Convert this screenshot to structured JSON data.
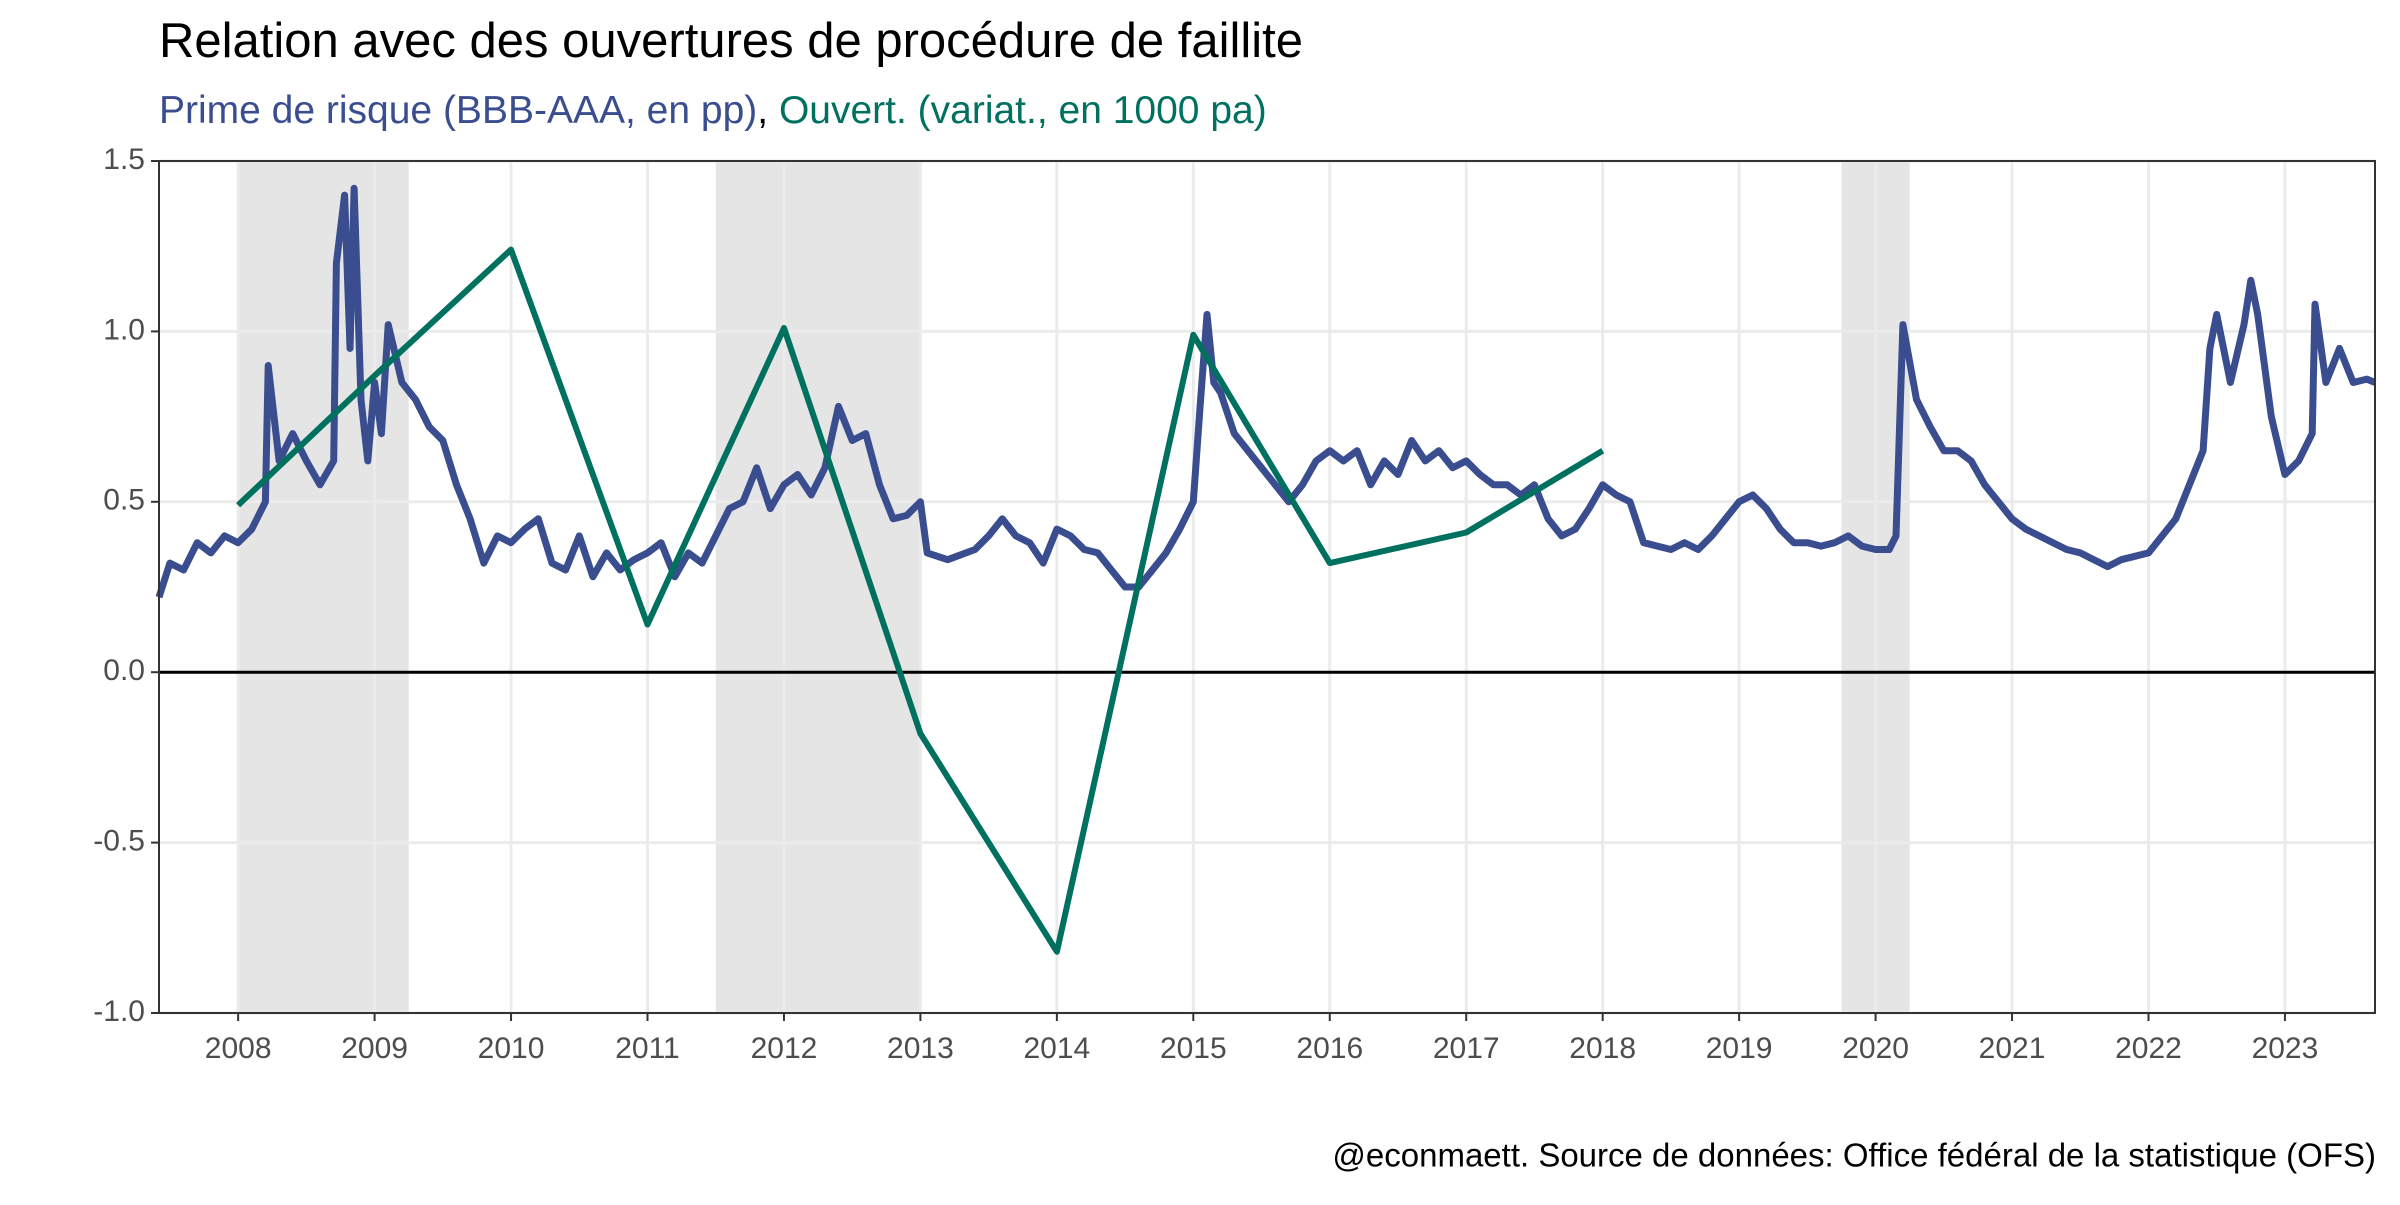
{
  "chart_data": {
    "type": "line",
    "title": "Relation avec des ouvertures de procédure de faillite",
    "subtitle": [
      {
        "text": "Prime de risque (BBB-AAA, en pp)",
        "color": "#3a4d8f"
      },
      {
        "text": ",",
        "color": "#000000"
      },
      {
        "text": " Ouvert. (variat., en 1000 pa)",
        "color": "#00705f"
      }
    ],
    "caption": "@econmaett. Source de données: Office fédéral de la statistique (OFS)",
    "xlim": [
      2007.42,
      2023.66
    ],
    "xticks": [
      2008,
      2009,
      2010,
      2011,
      2012,
      2013,
      2014,
      2015,
      2016,
      2017,
      2018,
      2019,
      2020,
      2021,
      2022,
      2023
    ],
    "ylim": [
      -1,
      1.5
    ],
    "yticks": [
      -0.5,
      {
        "value": -1,
        "label": "-1.0"
      },
      {
        "value": 0,
        "label": "0.0"
      },
      0.5,
      {
        "value": 1,
        "label": "1.0"
      },
      1.5
    ],
    "grid": true,
    "hline": 0,
    "shaded_periods": [
      [
        2008,
        2009.25
      ],
      [
        2011.5,
        2013
      ],
      [
        2019.75,
        2020.25
      ]
    ],
    "shade_color": "#e5e5e5",
    "series": [
      {
        "name": "Prime de risque (BBB-AAA, en pp)",
        "color": "#3a4d8f",
        "x": [
          2007.42,
          2007.5,
          2007.6,
          2007.7,
          2007.8,
          2007.9,
          2008.0,
          2008.1,
          2008.2,
          2008.22,
          2008.3,
          2008.4,
          2008.5,
          2008.6,
          2008.7,
          2008.72,
          2008.78,
          2008.82,
          2008.85,
          2008.9,
          2008.95,
          2009.0,
          2009.05,
          2009.1,
          2009.2,
          2009.3,
          2009.4,
          2009.5,
          2009.6,
          2009.7,
          2009.8,
          2009.9,
          2010.0,
          2010.1,
          2010.2,
          2010.3,
          2010.4,
          2010.5,
          2010.6,
          2010.7,
          2010.8,
          2010.9,
          2011.0,
          2011.1,
          2011.2,
          2011.3,
          2011.4,
          2011.5,
          2011.6,
          2011.7,
          2011.8,
          2011.9,
          2012.0,
          2012.1,
          2012.2,
          2012.3,
          2012.4,
          2012.5,
          2012.6,
          2012.7,
          2012.8,
          2012.9,
          2013.0,
          2013.05,
          2013.2,
          2013.4,
          2013.5,
          2013.6,
          2013.7,
          2013.8,
          2013.9,
          2014.0,
          2014.1,
          2014.2,
          2014.3,
          2014.4,
          2014.5,
          2014.6,
          2014.7,
          2014.8,
          2014.9,
          2015.0,
          2015.05,
          2015.1,
          2015.15,
          2015.2,
          2015.3,
          2015.4,
          2015.5,
          2015.6,
          2015.7,
          2015.8,
          2015.9,
          2016.0,
          2016.1,
          2016.2,
          2016.3,
          2016.4,
          2016.5,
          2016.6,
          2016.7,
          2016.8,
          2016.9,
          2017.0,
          2017.1,
          2017.2,
          2017.3,
          2017.4,
          2017.5,
          2017.6,
          2017.7,
          2017.8,
          2017.9,
          2018.0,
          2018.1,
          2018.2,
          2018.3,
          2018.4,
          2018.5,
          2018.6,
          2018.7,
          2018.8,
          2018.9,
          2019.0,
          2019.1,
          2019.2,
          2019.3,
          2019.4,
          2019.5,
          2019.6,
          2019.7,
          2019.8,
          2019.9,
          2020.0,
          2020.1,
          2020.15,
          2020.2,
          2020.3,
          2020.4,
          2020.5,
          2020.6,
          2020.7,
          2020.8,
          2020.9,
          2021.0,
          2021.1,
          2021.2,
          2021.3,
          2021.4,
          2021.5,
          2021.6,
          2021.7,
          2021.8,
          2021.9,
          2022.0,
          2022.1,
          2022.2,
          2022.3,
          2022.4,
          2022.45,
          2022.5,
          2022.6,
          2022.7,
          2022.75,
          2022.8,
          2022.9,
          2023.0,
          2023.1,
          2023.2,
          2023.22,
          2023.3,
          2023.4,
          2023.5,
          2023.6,
          2023.66
        ],
        "values": [
          0.22,
          0.32,
          0.3,
          0.38,
          0.35,
          0.4,
          0.38,
          0.42,
          0.5,
          0.9,
          0.62,
          0.7,
          0.62,
          0.55,
          0.62,
          1.2,
          1.4,
          0.95,
          1.42,
          0.8,
          0.62,
          0.85,
          0.7,
          1.02,
          0.85,
          0.8,
          0.72,
          0.68,
          0.55,
          0.45,
          0.32,
          0.4,
          0.38,
          0.42,
          0.45,
          0.32,
          0.3,
          0.4,
          0.28,
          0.35,
          0.3,
          0.33,
          0.35,
          0.38,
          0.28,
          0.35,
          0.32,
          0.4,
          0.48,
          0.5,
          0.6,
          0.48,
          0.55,
          0.58,
          0.52,
          0.6,
          0.78,
          0.68,
          0.7,
          0.55,
          0.45,
          0.46,
          0.5,
          0.35,
          0.33,
          0.36,
          0.4,
          0.45,
          0.4,
          0.38,
          0.32,
          0.42,
          0.4,
          0.36,
          0.35,
          0.3,
          0.25,
          0.25,
          0.3,
          0.35,
          0.42,
          0.5,
          0.78,
          1.05,
          0.85,
          0.82,
          0.7,
          0.65,
          0.6,
          0.55,
          0.5,
          0.55,
          0.62,
          0.65,
          0.62,
          0.65,
          0.55,
          0.62,
          0.58,
          0.68,
          0.62,
          0.65,
          0.6,
          0.62,
          0.58,
          0.55,
          0.55,
          0.52,
          0.55,
          0.45,
          0.4,
          0.42,
          0.48,
          0.55,
          0.52,
          0.5,
          0.38,
          0.37,
          0.36,
          0.38,
          0.36,
          0.4,
          0.45,
          0.5,
          0.52,
          0.48,
          0.42,
          0.38,
          0.38,
          0.37,
          0.38,
          0.4,
          0.37,
          0.36,
          0.36,
          0.4,
          1.02,
          0.8,
          0.72,
          0.65,
          0.65,
          0.62,
          0.55,
          0.5,
          0.45,
          0.42,
          0.4,
          0.38,
          0.36,
          0.35,
          0.33,
          0.31,
          0.33,
          0.34,
          0.35,
          0.4,
          0.45,
          0.55,
          0.65,
          0.95,
          1.05,
          0.85,
          1.02,
          1.15,
          1.05,
          0.75,
          0.58,
          0.62,
          0.7,
          1.08,
          0.85,
          0.95,
          0.85,
          0.86,
          0.85
        ]
      },
      {
        "name": "Ouvert. (variat., en 1000 pa)",
        "color": "#00705f",
        "x": [
          2008,
          2009,
          2010,
          2011,
          2012,
          2013,
          2014,
          2015,
          2016,
          2017,
          2018
        ],
        "values": [
          0.49,
          0.87,
          1.24,
          0.14,
          1.01,
          -0.18,
          -0.82,
          0.99,
          0.32,
          0.41,
          0.65
        ]
      }
    ]
  }
}
